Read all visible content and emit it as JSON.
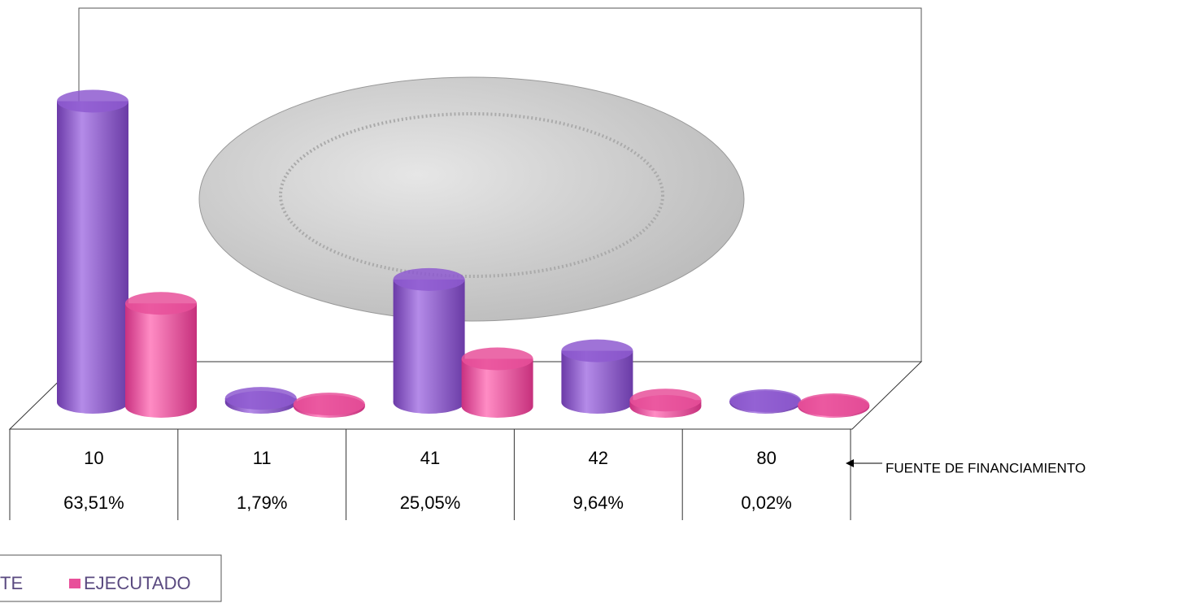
{
  "chart_data": {
    "type": "bar3d",
    "categories": [
      "10",
      "11",
      "41",
      "42",
      "80"
    ],
    "percentages": [
      "63,51%",
      "1,79%",
      "25,05%",
      "9,64%",
      "0,02%"
    ],
    "annotation": "FUENTE  DE FINANCIAMIENTO",
    "series": [
      {
        "name": "TE",
        "color": "#8e5bd0",
        "values": [
          380,
          5,
          155,
          65,
          2
        ]
      },
      {
        "name": "EJECUTADO",
        "color": "#e8509a",
        "values": [
          130,
          3,
          60,
          8,
          2
        ]
      }
    ],
    "ylim": [
      0,
      400
    ]
  }
}
